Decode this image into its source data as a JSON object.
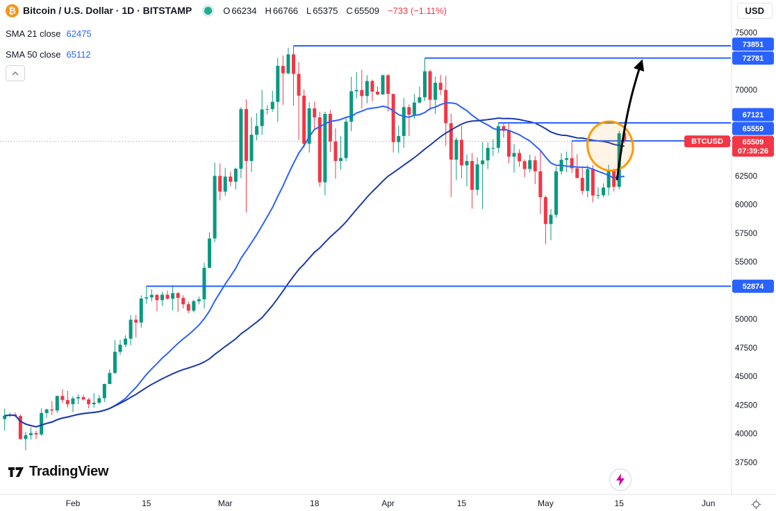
{
  "header": {
    "title": "Bitcoin / U.S. Dollar · 1D · BITSTAMP",
    "ohlc": {
      "o_label": "O",
      "o_value": "66234",
      "h_label": "H",
      "h_value": "66766",
      "l_label": "L",
      "l_value": "65375",
      "c_label": "C",
      "c_value": "65509",
      "change": "−733 (−1.11%)"
    },
    "currency_button_label": "USD"
  },
  "legend": {
    "rows": [
      {
        "label": "SMA 21 close",
        "value": "62475"
      },
      {
        "label": "SMA 50 close",
        "value": "65112"
      }
    ]
  },
  "footer": {
    "brand": "TradingView"
  },
  "price_scale": {
    "visible_labels": [
      75000,
      70000,
      62500,
      60000,
      57500,
      55000,
      50000,
      47500,
      45000,
      42500,
      40000,
      37500
    ],
    "badge_color": "#2962ff"
  },
  "time_scale": {
    "labels": [
      {
        "text": "Feb",
        "index": 13
      },
      {
        "text": "15",
        "index": 27
      },
      {
        "text": "Mar",
        "index": 42
      },
      {
        "text": "18",
        "index": 59
      },
      {
        "text": "Apr",
        "index": 73
      },
      {
        "text": "15",
        "index": 87
      },
      {
        "text": "May",
        "index": 103
      },
      {
        "text": "15",
        "index": 117
      },
      {
        "text": "Jun",
        "index": 134
      }
    ]
  },
  "current_price": {
    "symbol_label": "BTCUSD",
    "price": 65509,
    "price_text": "65509",
    "countdown": "07:39:26",
    "color": "#f23645"
  },
  "drawings": {
    "ray_color": "#2962ff",
    "horizontal_rays": [
      {
        "price": 73851,
        "label": "73851",
        "from_index": 55
      },
      {
        "price": 72781,
        "label": "72781",
        "from_index": 80
      },
      {
        "price": 67121,
        "label": "67121",
        "from_index": 94
      },
      {
        "price": 65559,
        "label": "65559",
        "from_index": 108
      },
      {
        "price": 52874,
        "label": "52874",
        "from_index": 27
      }
    ],
    "ellipse": {
      "center_index": 115.3,
      "center_price": 65100,
      "rx_days": 4.3,
      "ry_price": 2150,
      "rotation_deg": -15,
      "color": "#ff9800"
    },
    "arrow": {
      "from_index": 116.6,
      "from_price": 62200,
      "to_index": 121.3,
      "to_price": 72500,
      "color": "#000000"
    }
  },
  "chart_data": {
    "type": "candlestick",
    "symbol": "BTCUSD",
    "exchange": "BITSTAMP",
    "interval": "1D",
    "start_date": "2024-01-19",
    "ylim": [
      37500,
      75000
    ],
    "up_color": "#089981",
    "down_color": "#f23645",
    "overlays": [
      {
        "name": "SMA 21",
        "period": 21,
        "color": "#2962ff",
        "last_value": 62475
      },
      {
        "name": "SMA 50",
        "period": 50,
        "color": "#1c3aa6",
        "last_value": 65112
      }
    ],
    "ohlc": [
      [
        41280,
        42200,
        40280,
        41580
      ],
      [
        41580,
        41850,
        41450,
        41670
      ],
      [
        41670,
        41860,
        41500,
        41550
      ],
      [
        41550,
        41680,
        39480,
        39540
      ],
      [
        39540,
        40170,
        38560,
        39880
      ],
      [
        39880,
        40540,
        39490,
        40060
      ],
      [
        40060,
        40280,
        39550,
        39940
      ],
      [
        39940,
        42200,
        39820,
        41810
      ],
      [
        41810,
        42190,
        41400,
        42120
      ],
      [
        42120,
        42840,
        41620,
        42030
      ],
      [
        42030,
        43310,
        41810,
        43300
      ],
      [
        43300,
        43880,
        42680,
        42940
      ],
      [
        42940,
        43740,
        42280,
        42580
      ],
      [
        42580,
        43270,
        41880,
        43080
      ],
      [
        43080,
        43440,
        42580,
        43190
      ],
      [
        43190,
        43400,
        42880,
        42990
      ],
      [
        42990,
        43120,
        42220,
        42580
      ],
      [
        42580,
        43550,
        42270,
        42710
      ],
      [
        42710,
        43370,
        42570,
        43100
      ],
      [
        43100,
        44370,
        42780,
        44340
      ],
      [
        44340,
        45610,
        44330,
        45300
      ],
      [
        45300,
        48170,
        45240,
        47150
      ],
      [
        47150,
        48200,
        46860,
        47770
      ],
      [
        47770,
        48590,
        47570,
        48300
      ],
      [
        48300,
        50330,
        47710,
        49950
      ],
      [
        49950,
        50370,
        48390,
        49700
      ],
      [
        49700,
        52080,
        49250,
        51800
      ],
      [
        51800,
        52874,
        51350,
        51900
      ],
      [
        51900,
        52590,
        51540,
        52120
      ],
      [
        52120,
        52190,
        50680,
        51660
      ],
      [
        51660,
        52380,
        51170,
        52130
      ],
      [
        52130,
        52490,
        51690,
        51780
      ],
      [
        51780,
        52970,
        50760,
        52270
      ],
      [
        52270,
        52370,
        50630,
        51850
      ],
      [
        51850,
        52080,
        50940,
        51300
      ],
      [
        51300,
        51550,
        50520,
        50740
      ],
      [
        50740,
        51700,
        50590,
        51570
      ],
      [
        51570,
        51960,
        51290,
        51730
      ],
      [
        51730,
        54910,
        50930,
        54480
      ],
      [
        54480,
        57580,
        54450,
        57040
      ],
      [
        57040,
        63680,
        56700,
        62500
      ],
      [
        62500,
        63590,
        60360,
        61130
      ],
      [
        61130,
        63210,
        60770,
        62440
      ],
      [
        62440,
        62900,
        61600,
        61990
      ],
      [
        61990,
        63230,
        61320,
        63120
      ],
      [
        63120,
        68500,
        62300,
        68330
      ],
      [
        68330,
        69170,
        59300,
        63800
      ],
      [
        63800,
        67640,
        62840,
        66090
      ],
      [
        66090,
        67980,
        65600,
        66850
      ],
      [
        66850,
        69990,
        66080,
        68300
      ],
      [
        68300,
        68650,
        67860,
        68330
      ],
      [
        68330,
        69930,
        68100,
        68960
      ],
      [
        68960,
        72800,
        67220,
        72100
      ],
      [
        72100,
        73000,
        68700,
        71450
      ],
      [
        71450,
        73680,
        71340,
        73100
      ],
      [
        73100,
        73851,
        68640,
        71400
      ],
      [
        71400,
        72420,
        65630,
        69500
      ],
      [
        69500,
        70050,
        64960,
        65310
      ],
      [
        65310,
        68920,
        64530,
        68390
      ],
      [
        68390,
        68960,
        66570,
        67610
      ],
      [
        67610,
        68100,
        61550,
        61940
      ],
      [
        61940,
        68100,
        60790,
        67910
      ],
      [
        67910,
        68240,
        64590,
        65500
      ],
      [
        65500,
        66650,
        62260,
        63800
      ],
      [
        63800,
        65990,
        63060,
        64060
      ],
      [
        64060,
        67620,
        63790,
        67230
      ],
      [
        67230,
        71150,
        66400,
        69880
      ],
      [
        69880,
        71560,
        69280,
        69990
      ],
      [
        69990,
        71770,
        68390,
        69470
      ],
      [
        69470,
        71290,
        68830,
        70780
      ],
      [
        70780,
        70910,
        69010,
        69850
      ],
      [
        69850,
        70310,
        69570,
        69600
      ],
      [
        69600,
        71340,
        69590,
        71280
      ],
      [
        71280,
        71370,
        68110,
        69650
      ],
      [
        69650,
        69670,
        64550,
        65450
      ],
      [
        65450,
        66900,
        64500,
        65980
      ],
      [
        65980,
        69290,
        64960,
        68500
      ],
      [
        68500,
        68740,
        65980,
        67840
      ],
      [
        67840,
        69650,
        67450,
        68900
      ],
      [
        68900,
        70290,
        68820,
        69360
      ],
      [
        69360,
        72781,
        69050,
        71630
      ],
      [
        71630,
        71760,
        68210,
        69140
      ],
      [
        69140,
        71180,
        67880,
        70630
      ],
      [
        70630,
        71300,
        69570,
        70000
      ],
      [
        70000,
        71230,
        65110,
        67100
      ],
      [
        67100,
        67930,
        60660,
        63920
      ],
      [
        63920,
        65840,
        62130,
        65650
      ],
      [
        65650,
        66870,
        62280,
        63420
      ],
      [
        63420,
        64370,
        61600,
        63800
      ],
      [
        63800,
        64490,
        59640,
        61280
      ],
      [
        61280,
        64120,
        60800,
        63510
      ],
      [
        63510,
        65450,
        59600,
        63850
      ],
      [
        63850,
        65420,
        63090,
        64940
      ],
      [
        64940,
        65690,
        64240,
        64950
      ],
      [
        64950,
        67121,
        64510,
        66840
      ],
      [
        66840,
        67190,
        65820,
        66430
      ],
      [
        66430,
        67080,
        63590,
        64180
      ],
      [
        64180,
        65280,
        62790,
        64500
      ],
      [
        64500,
        64820,
        63300,
        63780
      ],
      [
        63780,
        63940,
        62390,
        63100
      ],
      [
        63100,
        64370,
        62810,
        63870
      ],
      [
        63870,
        64230,
        61770,
        62900
      ],
      [
        62900,
        64730,
        59170,
        60640
      ],
      [
        60640,
        60780,
        56550,
        58300
      ],
      [
        58300,
        59600,
        56880,
        59100
      ],
      [
        59100,
        63300,
        58860,
        62900
      ],
      [
        62900,
        64480,
        62600,
        63900
      ],
      [
        63900,
        64630,
        62820,
        64050
      ],
      [
        64050,
        65559,
        62750,
        63160
      ],
      [
        63160,
        64400,
        62260,
        62320
      ],
      [
        62320,
        63240,
        60890,
        61190
      ],
      [
        61190,
        63420,
        60630,
        63090
      ],
      [
        63090,
        63450,
        60190,
        60790
      ],
      [
        60790,
        61490,
        60490,
        60820
      ],
      [
        60820,
        61860,
        60610,
        61480
      ],
      [
        61480,
        63470,
        60790,
        62940
      ],
      [
        62940,
        63110,
        61140,
        61550
      ],
      [
        61550,
        66440,
        61320,
        66210
      ],
      [
        66234,
        66766,
        65375,
        65509
      ]
    ]
  }
}
